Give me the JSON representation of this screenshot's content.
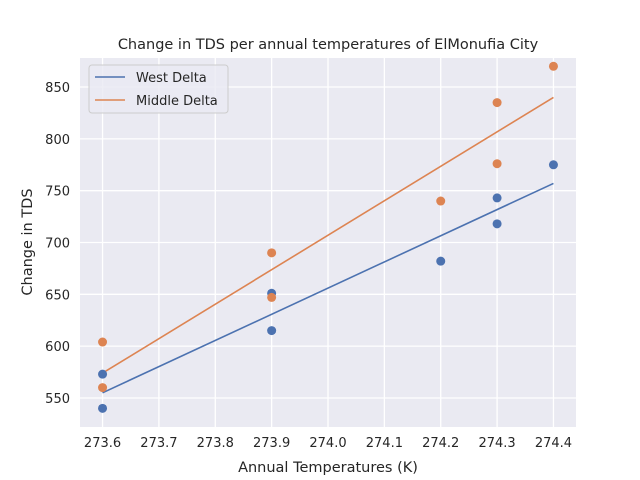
{
  "chart_data": {
    "type": "scatter",
    "title": "Change in TDS per annual temperatures of ElMonufia City",
    "xlabel": "Annual Temperatures (K)",
    "ylabel": "Change in TDS",
    "xlim": [
      273.56,
      274.44
    ],
    "ylim": [
      522,
      878
    ],
    "x_ticks": [
      273.6,
      273.7,
      273.8,
      273.9,
      274.0,
      274.1,
      274.2,
      274.3,
      274.4
    ],
    "x_tick_labels": [
      "273.6",
      "273.7",
      "273.8",
      "273.9",
      "274.0",
      "274.1",
      "274.2",
      "274.3",
      "274.4"
    ],
    "y_ticks": [
      550,
      600,
      650,
      700,
      750,
      800,
      850
    ],
    "y_tick_labels": [
      "550",
      "600",
      "650",
      "700",
      "750",
      "800",
      "850"
    ],
    "grid": true,
    "legend_position": "top-left",
    "series": [
      {
        "name": "West Delta",
        "color": "#4c72b0",
        "points": [
          {
            "x": 273.6,
            "y": 540
          },
          {
            "x": 273.6,
            "y": 573
          },
          {
            "x": 273.9,
            "y": 615
          },
          {
            "x": 273.9,
            "y": 651
          },
          {
            "x": 274.2,
            "y": 682
          },
          {
            "x": 274.3,
            "y": 718
          },
          {
            "x": 274.3,
            "y": 743
          },
          {
            "x": 274.4,
            "y": 775
          }
        ],
        "fit_line": [
          {
            "x": 273.6,
            "y": 555
          },
          {
            "x": 274.4,
            "y": 757
          }
        ]
      },
      {
        "name": "Middle Delta",
        "color": "#dd8452",
        "points": [
          {
            "x": 273.6,
            "y": 560
          },
          {
            "x": 273.6,
            "y": 604
          },
          {
            "x": 273.9,
            "y": 647
          },
          {
            "x": 273.9,
            "y": 690
          },
          {
            "x": 274.2,
            "y": 740
          },
          {
            "x": 274.3,
            "y": 776
          },
          {
            "x": 274.3,
            "y": 835
          },
          {
            "x": 274.4,
            "y": 870
          }
        ],
        "fit_line": [
          {
            "x": 273.6,
            "y": 574
          },
          {
            "x": 274.4,
            "y": 840
          }
        ]
      }
    ]
  }
}
